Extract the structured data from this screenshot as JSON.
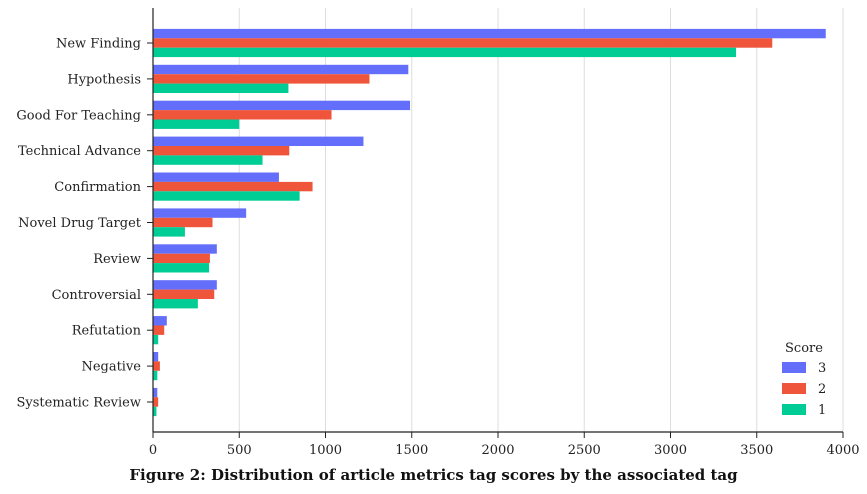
{
  "chart_data": {
    "type": "bar",
    "orientation": "horizontal",
    "categories": [
      "New Finding",
      "Hypothesis",
      "Good For Teaching",
      "Technical Advance",
      "Confirmation",
      "Novel Drug Target",
      "Review",
      "Controversial",
      "Refutation",
      "Negative",
      "Systematic Review"
    ],
    "series": [
      {
        "name": "3",
        "color": "#636efa",
        "values": [
          3900,
          1480,
          1490,
          1220,
          730,
          540,
          370,
          370,
          80,
          30,
          25
        ]
      },
      {
        "name": "2",
        "color": "#ef553b",
        "values": [
          3590,
          1255,
          1035,
          790,
          925,
          345,
          330,
          355,
          65,
          40,
          30
        ]
      },
      {
        "name": "1",
        "color": "#00cc96",
        "values": [
          3380,
          785,
          500,
          635,
          850,
          185,
          325,
          260,
          30,
          25,
          20
        ]
      }
    ],
    "xlim": [
      0,
      4000
    ],
    "xticks": [
      0,
      500,
      1000,
      1500,
      2000,
      2500,
      3000,
      3500,
      4000
    ],
    "grid": "vertical",
    "legend": {
      "title": "Score",
      "position": "lower-right"
    }
  },
  "caption": "Figure 2: Distribution of article metrics tag scores by the associated tag"
}
